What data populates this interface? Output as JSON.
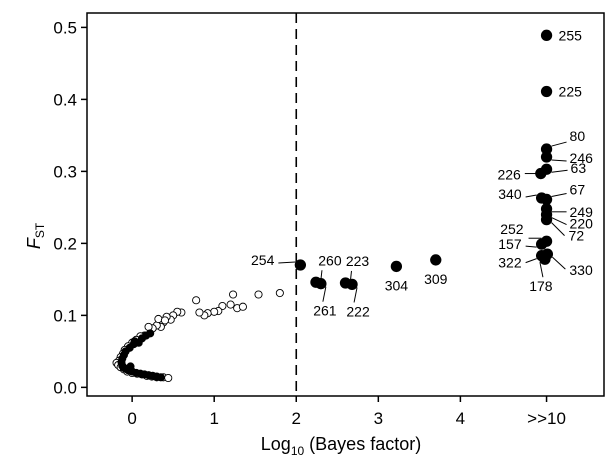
{
  "chart_data": {
    "type": "scatter",
    "title": "",
    "xlabel": {
      "main": "Log",
      "sub": "10",
      "rest": " (Bayes factor)"
    },
    "ylabel": {
      "main": "F",
      "sub": "ST"
    },
    "xlim": [
      -0.55,
      5.75
    ],
    "ylim": [
      -0.012,
      0.52
    ],
    "x_ticks": [
      {
        "value": 0,
        "label": "0"
      },
      {
        "value": 1,
        "label": "1"
      },
      {
        "value": 2,
        "label": "2"
      },
      {
        "value": 3,
        "label": "3"
      },
      {
        "value": 4,
        "label": "4"
      },
      {
        "value": 5.05,
        "label": ">>10"
      }
    ],
    "y_ticks": [
      {
        "value": 0.0,
        "label": "0.0"
      },
      {
        "value": 0.1,
        "label": "0.1"
      },
      {
        "value": 0.2,
        "label": "0.2"
      },
      {
        "value": 0.3,
        "label": "0.3"
      },
      {
        "value": 0.4,
        "label": "0.4"
      },
      {
        "value": 0.5,
        "label": "0.5"
      }
    ],
    "threshold": {
      "x": 2,
      "style": "dashed"
    },
    "colors": {
      "filled": "#000000",
      "open_fill": "#ffffff",
      "stroke": "#000000",
      "axis": "#000000"
    },
    "labeled_points": [
      {
        "label": "255",
        "x": 5.05,
        "y": 0.489
      },
      {
        "label": "225",
        "x": 5.05,
        "y": 0.411
      },
      {
        "label": "80",
        "x": 5.05,
        "y": 0.331
      },
      {
        "label": "246",
        "x": 5.05,
        "y": 0.32
      },
      {
        "label": "63",
        "x": 5.05,
        "y": 0.303
      },
      {
        "label": "226",
        "x": 4.98,
        "y": 0.297
      },
      {
        "label": "340",
        "x": 4.99,
        "y": 0.263
      },
      {
        "label": "67",
        "x": 5.05,
        "y": 0.261
      },
      {
        "label": "249",
        "x": 5.05,
        "y": 0.248
      },
      {
        "label": "220",
        "x": 5.05,
        "y": 0.24
      },
      {
        "label": "72",
        "x": 5.05,
        "y": 0.233
      },
      {
        "label": "252",
        "x": 5.05,
        "y": 0.203
      },
      {
        "label": "157",
        "x": 4.99,
        "y": 0.199
      },
      {
        "label": "322",
        "x": 4.99,
        "y": 0.183
      },
      {
        "label": "178",
        "x": 5.03,
        "y": 0.178
      },
      {
        "label": "330",
        "x": 5.06,
        "y": 0.185
      },
      {
        "label": "254",
        "x": 2.05,
        "y": 0.17
      },
      {
        "label": "260",
        "x": 2.24,
        "y": 0.146
      },
      {
        "label": "261",
        "x": 2.3,
        "y": 0.144
      },
      {
        "label": "223",
        "x": 2.6,
        "y": 0.145
      },
      {
        "label": "222",
        "x": 2.68,
        "y": 0.143
      },
      {
        "label": "304",
        "x": 3.22,
        "y": 0.168
      },
      {
        "label": "309",
        "x": 3.7,
        "y": 0.177
      }
    ],
    "filled_points": [
      [
        0.22,
        0.075
      ],
      [
        0.17,
        0.072
      ],
      [
        0.12,
        0.068
      ],
      [
        0.08,
        0.062
      ],
      [
        0.02,
        0.06
      ],
      [
        -0.03,
        0.055
      ],
      [
        -0.08,
        0.05
      ],
      [
        -0.1,
        0.045
      ],
      [
        -0.12,
        0.04
      ],
      [
        -0.13,
        0.035
      ],
      [
        -0.12,
        0.03
      ],
      [
        -0.1,
        0.027
      ],
      [
        -0.05,
        0.024
      ],
      [
        0.0,
        0.022
      ],
      [
        0.05,
        0.02
      ],
      [
        0.1,
        0.019
      ],
      [
        0.15,
        0.018
      ],
      [
        0.2,
        0.017
      ],
      [
        0.25,
        0.016
      ],
      [
        0.3,
        0.015
      ],
      [
        0.35,
        0.014
      ],
      [
        -0.08,
        0.026
      ],
      [
        -0.02,
        0.029
      ],
      [
        0.03,
        0.064
      ]
    ],
    "open_points": [
      [
        1.54,
        0.129
      ],
      [
        1.8,
        0.131
      ],
      [
        1.23,
        0.129
      ],
      [
        1.28,
        0.11
      ],
      [
        1.35,
        0.112
      ],
      [
        1.2,
        0.115
      ],
      [
        1.1,
        0.113
      ],
      [
        1.05,
        0.106
      ],
      [
        1.0,
        0.105
      ],
      [
        0.92,
        0.103
      ],
      [
        0.88,
        0.1
      ],
      [
        0.82,
        0.104
      ],
      [
        0.78,
        0.121
      ],
      [
        0.6,
        0.104
      ],
      [
        0.55,
        0.105
      ],
      [
        0.5,
        0.1
      ],
      [
        0.47,
        0.094
      ],
      [
        0.42,
        0.098
      ],
      [
        0.38,
        0.09
      ],
      [
        0.35,
        0.084
      ],
      [
        0.3,
        0.086
      ],
      [
        0.25,
        0.082
      ],
      [
        0.2,
        0.084
      ],
      [
        0.15,
        0.072
      ],
      [
        0.1,
        0.071
      ],
      [
        0.05,
        0.066
      ],
      [
        0.0,
        0.062
      ],
      [
        -0.05,
        0.057
      ],
      [
        -0.09,
        0.052
      ],
      [
        -0.11,
        0.047
      ],
      [
        -0.14,
        0.042
      ],
      [
        -0.16,
        0.037
      ],
      [
        -0.19,
        0.034
      ],
      [
        -0.17,
        0.031
      ],
      [
        -0.14,
        0.028
      ],
      [
        -0.1,
        0.025
      ],
      [
        -0.06,
        0.022
      ],
      [
        0.0,
        0.02
      ],
      [
        0.06,
        0.019
      ],
      [
        0.12,
        0.018
      ],
      [
        0.18,
        0.016
      ],
      [
        0.24,
        0.015
      ],
      [
        0.3,
        0.014
      ],
      [
        0.38,
        0.014
      ],
      [
        0.44,
        0.013
      ],
      [
        0.32,
        0.095
      ],
      [
        0.4,
        0.093
      ]
    ]
  }
}
